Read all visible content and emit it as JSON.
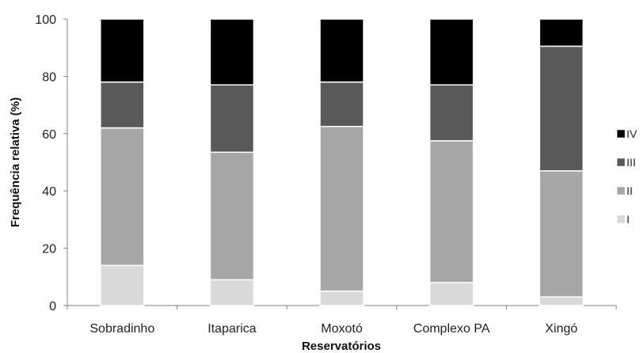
{
  "chart_data": {
    "type": "bar",
    "stacked": true,
    "title": "",
    "xlabel": "Reservatórios",
    "ylabel": "Frequência relativa (%)",
    "ylim": [
      0,
      100
    ],
    "yticks": [
      0,
      20,
      40,
      60,
      80,
      100
    ],
    "grid": false,
    "legend_position": "right",
    "categories": [
      "Sobradinho",
      "Itaparica",
      "Moxotó",
      "Complexo PA",
      "Xingó"
    ],
    "series": [
      {
        "name": "I",
        "color": "#d9d9d9",
        "values": [
          14,
          9,
          5,
          8,
          3
        ]
      },
      {
        "name": "II",
        "color": "#a6a6a6",
        "values": [
          48,
          44.5,
          57.5,
          49.5,
          44
        ]
      },
      {
        "name": "III",
        "color": "#595959",
        "values": [
          16,
          23.5,
          15.5,
          19.5,
          43.5
        ]
      },
      {
        "name": "IV",
        "color": "#000000",
        "values": [
          22,
          23,
          22,
          23,
          9.5
        ]
      }
    ],
    "legend_order": [
      "IV",
      "III",
      "II",
      "I"
    ]
  }
}
